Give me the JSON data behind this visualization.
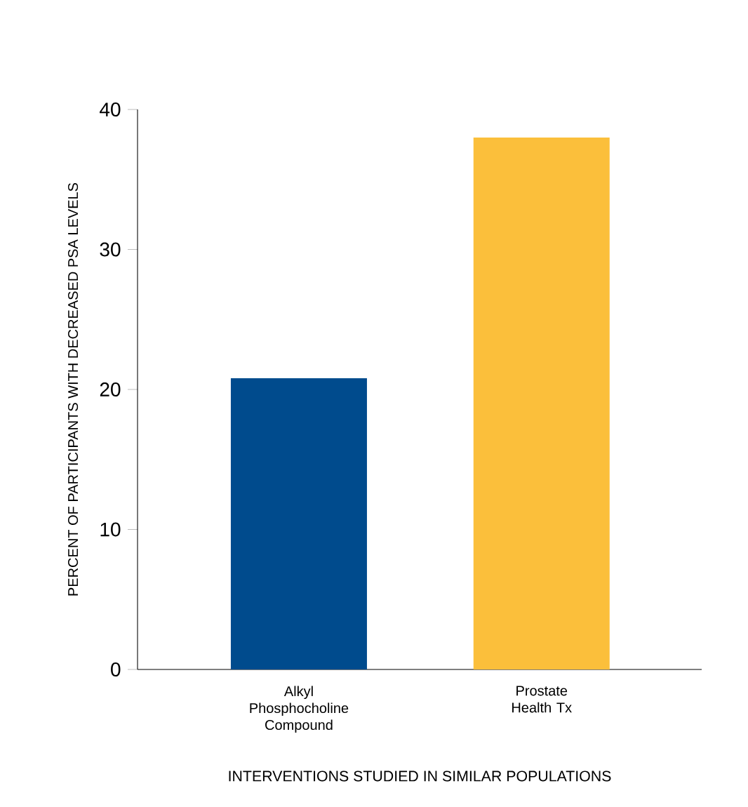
{
  "chart_data": {
    "type": "bar",
    "xlabel": "INTERVENTIONS STUDIED IN SIMILAR POPULATIONS",
    "ylabel": "PERCENT OF PARTICIPANTS WITH DECREASED PSA LEVELS",
    "categories": [
      "Alkyl Phosphocholine Compound",
      "Prostate Health Tx"
    ],
    "values": [
      20.8,
      38
    ],
    "colors": [
      "#004b8d",
      "#fbbf3b"
    ],
    "ylim": [
      0,
      40
    ],
    "yticks": [
      0,
      10,
      20,
      30,
      40
    ],
    "grid": false
  }
}
